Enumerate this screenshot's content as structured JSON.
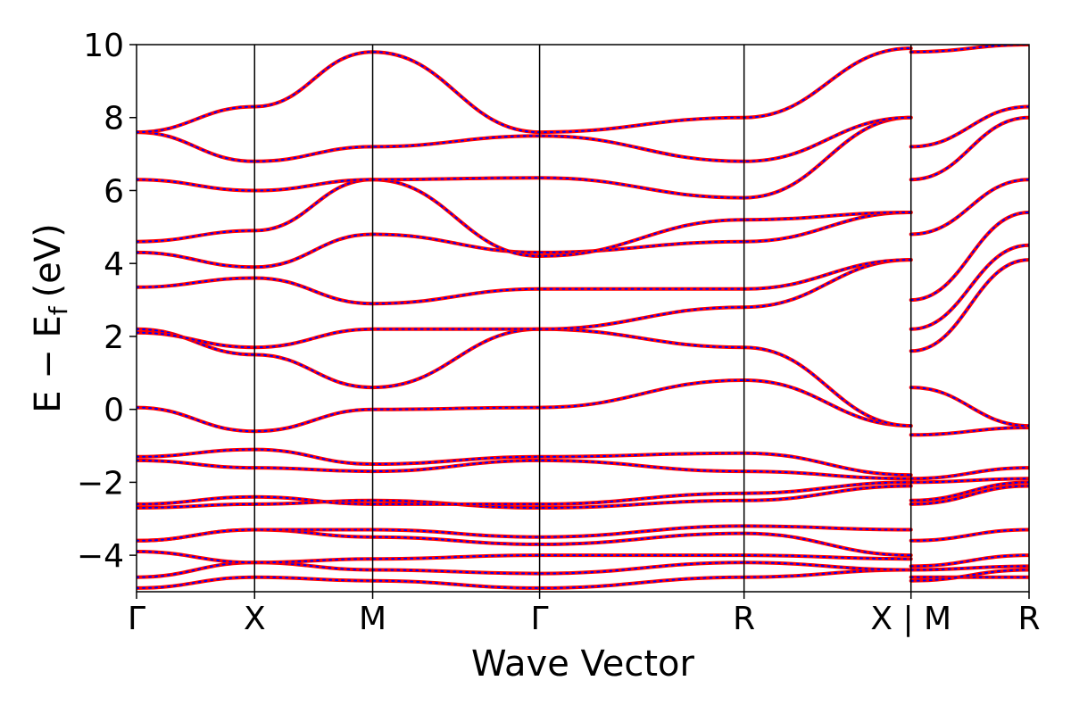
{
  "chart_data": {
    "type": "line",
    "title": "",
    "xlabel": "Wave Vector",
    "ylabel": "E − E",
    "ylabel_subscript": "f",
    "ylabel_unit": "(eV)",
    "ylim": [
      -5,
      10
    ],
    "yticks": [
      {
        "value": -4,
        "label": "−4"
      },
      {
        "value": -2,
        "label": "−2"
      },
      {
        "value": 0,
        "label": "0"
      },
      {
        "value": 2,
        "label": "2"
      },
      {
        "value": 4,
        "label": "4"
      },
      {
        "value": 6,
        "label": "6"
      },
      {
        "value": 8,
        "label": "8"
      },
      {
        "value": 10,
        "label": "10"
      }
    ],
    "path_points": [
      {
        "label": "Γ",
        "distance": 0.0
      },
      {
        "label": "X",
        "distance": 0.5
      },
      {
        "label": "M",
        "distance": 1.0
      },
      {
        "label": "Γ",
        "distance": 1.707
      },
      {
        "label": "R",
        "distance": 2.573
      },
      {
        "label": "X | M",
        "distance": 3.28
      },
      {
        "label": "R",
        "distance": 3.78
      }
    ],
    "grid": false,
    "legend": "none",
    "series_styles": [
      {
        "color": "#ff0000",
        "line": "solid"
      },
      {
        "color": "#0000ff",
        "line": "dotted"
      }
    ],
    "bands": [
      [
        -4.9,
        -4.6,
        -4.7,
        -4.9,
        -4.6,
        -4.4,
        -4.6,
        -4.6
      ],
      [
        -4.6,
        -4.2,
        -4.4,
        -4.5,
        -4.2,
        -4.4,
        -4.7,
        -4.4
      ],
      [
        -3.9,
        -4.2,
        -4.1,
        -4.0,
        -4.0,
        -4.1,
        -4.4,
        -4.3
      ],
      [
        -3.6,
        -3.3,
        -3.5,
        -3.7,
        -3.4,
        -4.0,
        -4.3,
        -4.0
      ],
      [
        -3.6,
        -3.3,
        -3.3,
        -3.5,
        -3.2,
        -3.3,
        -3.6,
        -3.3
      ],
      [
        -2.7,
        -2.6,
        -2.5,
        -2.7,
        -2.5,
        -2.1,
        -2.6,
        -2.1
      ],
      [
        -2.6,
        -2.4,
        -2.6,
        -2.6,
        -2.3,
        -2.0,
        -2.5,
        -2.0
      ],
      [
        -1.4,
        -1.6,
        -1.7,
        -1.4,
        -1.7,
        -1.9,
        -2.0,
        -1.9
      ],
      [
        -1.3,
        -1.1,
        -1.5,
        -1.3,
        -1.2,
        -1.8,
        -1.9,
        -1.6
      ],
      [
        0.05,
        -0.6,
        0.0,
        0.05,
        0.8,
        -0.45,
        -0.7,
        -0.5
      ],
      [
        2.2,
        1.5,
        0.6,
        2.2,
        1.7,
        -0.45,
        0.6,
        -0.45
      ],
      [
        2.1,
        1.7,
        2.2,
        2.2,
        2.8,
        4.1,
        1.6,
        4.1
      ],
      [
        3.35,
        3.6,
        2.9,
        3.3,
        3.3,
        4.1,
        2.2,
        4.5
      ],
      [
        4.3,
        3.9,
        4.8,
        4.3,
        4.6,
        5.4,
        3.0,
        5.4
      ],
      [
        4.6,
        4.9,
        6.3,
        4.2,
        5.2,
        5.4,
        4.8,
        6.3
      ],
      [
        6.3,
        6.0,
        6.3,
        6.35,
        5.8,
        8.0,
        6.3,
        8.0
      ],
      [
        7.6,
        6.8,
        7.2,
        7.5,
        6.8,
        8.0,
        7.2,
        8.3
      ],
      [
        7.6,
        8.3,
        9.8,
        7.6,
        8.0,
        9.9,
        9.8,
        10.0
      ]
    ]
  }
}
